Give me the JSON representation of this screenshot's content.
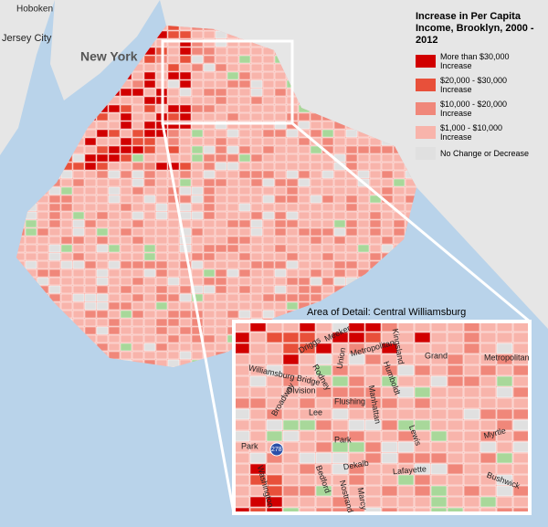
{
  "places": [
    "Hoboken",
    "Jersey City",
    "New York"
  ],
  "legend": {
    "title": "Increase in Per Capita Income, Brooklyn, 2000 - 2012",
    "items": [
      {
        "label": "More than $30,000 Increase",
        "color": "#d10000"
      },
      {
        "label": "$20,000 - $30,000 Increase",
        "color": "#e8503a"
      },
      {
        "label": "$10,000 - $20,000 Increase",
        "color": "#f0877a"
      },
      {
        "label": "$1,000 - $10,000 Increase",
        "color": "#f8b4ab"
      },
      {
        "label": "No Change or Decrease",
        "color": "#e0e0e0"
      }
    ]
  },
  "inset": {
    "title": "Area of Detail: Central Williamsburg",
    "streets": [
      "Metropolitan",
      "Grand",
      "Meeker",
      "Kingsland",
      "Driggs",
      "Williamsburg Bridge",
      "Rodney",
      "Union",
      "Metropolitan",
      "Humboldt",
      "Division",
      "Manhattan",
      "Lee",
      "Broadway",
      "Flushing",
      "Park",
      "Myrtle",
      "Lewis",
      "Bedford",
      "Dekalb",
      "Lafayette",
      "Park",
      "278",
      "Washington",
      "Nostrand",
      "Marcy",
      "Bushwick"
    ]
  }
}
